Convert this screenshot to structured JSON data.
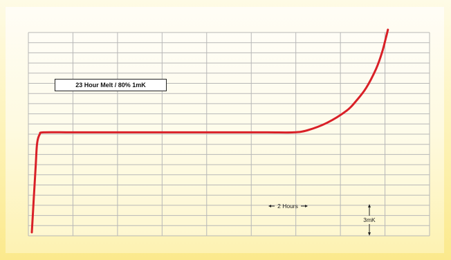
{
  "chart_data": {
    "type": "line",
    "title": "",
    "xlabel": "",
    "ylabel": "",
    "grid": true,
    "legend": {
      "label": "23 Hour Melt / 80% 1mK",
      "placement": "top-left"
    },
    "x_grid_divisions": 9,
    "y_grid_divisions": 20,
    "x_scale_annotation": "2 Hours",
    "y_scale_annotation": "3mK",
    "series": [
      {
        "name": "23 Hour Melt / 80% 1mK",
        "color": "#d92027",
        "x_unit": "hours",
        "y_unit": "mK",
        "points": [
          [
            0.0,
            0.0
          ],
          [
            0.1,
            5.0
          ],
          [
            0.2,
            10.0
          ],
          [
            0.27,
            13.2
          ],
          [
            0.4,
            14.5
          ],
          [
            0.6,
            14.8
          ],
          [
            2,
            14.8
          ],
          [
            4,
            14.8
          ],
          [
            6,
            14.8
          ],
          [
            8,
            14.8
          ],
          [
            10,
            14.8
          ],
          [
            12,
            14.8
          ],
          [
            13.3,
            14.8
          ],
          [
            14.0,
            15.1
          ],
          [
            15.0,
            16.2
          ],
          [
            16.0,
            18.0
          ],
          [
            16.5,
            19.5
          ],
          [
            17.0,
            21.4
          ],
          [
            17.5,
            24.2
          ],
          [
            17.8,
            26.6
          ],
          [
            18.0,
            28.8
          ],
          [
            18.1,
            30.0
          ]
        ]
      }
    ],
    "x_range_hours": [
      0,
      18.6
    ],
    "y_range_mK": [
      0,
      30.5
    ]
  }
}
